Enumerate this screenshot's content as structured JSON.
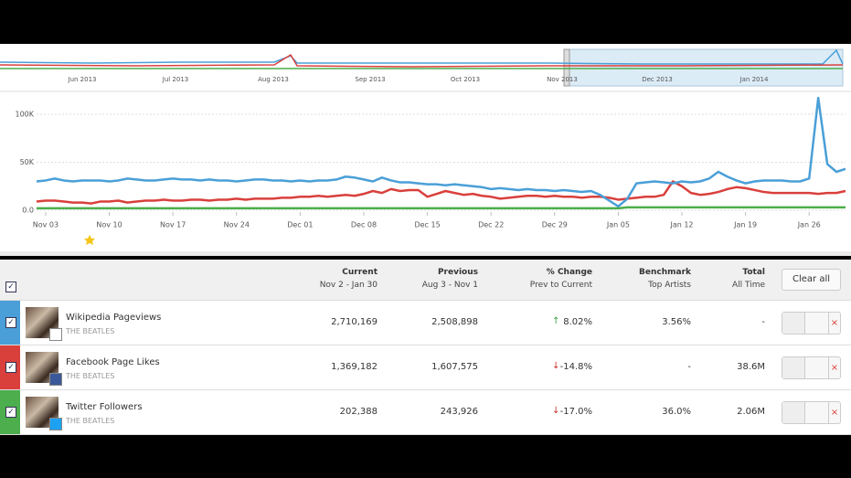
{
  "overview": {
    "labels": [
      "Jun 2013",
      "Jul 2013",
      "Aug 2013",
      "Sep 2013",
      "Oct 2013",
      "Nov 2013",
      "Dec 2013",
      "Jan 2014"
    ]
  },
  "chart_data": {
    "type": "line",
    "x": [
      "Nov 02",
      "Nov 03",
      "Nov 04",
      "Nov 05",
      "Nov 06",
      "Nov 07",
      "Nov 08",
      "Nov 09",
      "Nov 10",
      "Nov 11",
      "Nov 12",
      "Nov 13",
      "Nov 14",
      "Nov 15",
      "Nov 16",
      "Nov 17",
      "Nov 18",
      "Nov 19",
      "Nov 20",
      "Nov 21",
      "Nov 22",
      "Nov 23",
      "Nov 24",
      "Nov 25",
      "Nov 26",
      "Nov 27",
      "Nov 28",
      "Nov 29",
      "Nov 30",
      "Dec 01",
      "Dec 02",
      "Dec 03",
      "Dec 04",
      "Dec 05",
      "Dec 06",
      "Dec 07",
      "Dec 08",
      "Dec 09",
      "Dec 10",
      "Dec 11",
      "Dec 12",
      "Dec 13",
      "Dec 14",
      "Dec 15",
      "Dec 16",
      "Dec 17",
      "Dec 18",
      "Dec 19",
      "Dec 20",
      "Dec 21",
      "Dec 22",
      "Dec 23",
      "Dec 24",
      "Dec 25",
      "Dec 26",
      "Dec 27",
      "Dec 28",
      "Dec 29",
      "Dec 30",
      "Dec 31",
      "Jan 01",
      "Jan 02",
      "Jan 03",
      "Jan 04",
      "Jan 05",
      "Jan 06",
      "Jan 07",
      "Jan 08",
      "Jan 09",
      "Jan 10",
      "Jan 11",
      "Jan 12",
      "Jan 13",
      "Jan 14",
      "Jan 15",
      "Jan 16",
      "Jan 17",
      "Jan 18",
      "Jan 19",
      "Jan 20",
      "Jan 21",
      "Jan 22",
      "Jan 23",
      "Jan 24",
      "Jan 25",
      "Jan 26",
      "Jan 27",
      "Jan 28",
      "Jan 29",
      "Jan 30"
    ],
    "xticks": [
      "Nov 03",
      "Nov 10",
      "Nov 17",
      "Nov 24",
      "Dec 01",
      "Dec 08",
      "Dec 15",
      "Dec 22",
      "Dec 29",
      "Jan 05",
      "Jan 12",
      "Jan 19",
      "Jan 26"
    ],
    "ylim": [
      0,
      120000
    ],
    "yticks": [
      {
        "value": 0,
        "label": "0.0"
      },
      {
        "value": 50000,
        "label": "50K"
      },
      {
        "value": 100000,
        "label": "100K"
      }
    ],
    "grid": true,
    "series": [
      {
        "color": "#4a9fd8",
        "values": [
          30000,
          31000,
          33000,
          31000,
          30000,
          31000,
          31000,
          31000,
          30000,
          31000,
          33000,
          32000,
          31000,
          31000,
          32000,
          33000,
          32000,
          32000,
          31000,
          32000,
          31000,
          31000,
          30000,
          31000,
          32000,
          32000,
          31000,
          31000,
          30000,
          31000,
          30000,
          31000,
          31000,
          32000,
          35000,
          34000,
          32000,
          30000,
          34000,
          31000,
          29000,
          29000,
          28000,
          27000,
          27000,
          26000,
          27000,
          26000,
          25000,
          24000,
          22000,
          23000,
          22000,
          21000,
          22000,
          21000,
          21000,
          20000,
          21000,
          20000,
          19000,
          20000,
          16000,
          10000,
          4000,
          12000,
          28000,
          29000,
          30000,
          29000,
          28000,
          30000,
          29000,
          30000,
          33000,
          40000,
          35000,
          31000,
          28000,
          30000,
          31000,
          31000,
          31000,
          30000,
          30000,
          33000,
          117000,
          48000,
          40000,
          43000
        ]
      },
      {
        "color": "#d9403c",
        "values": [
          9000,
          10000,
          10000,
          9000,
          8000,
          8000,
          7000,
          9000,
          9000,
          10000,
          8000,
          9000,
          10000,
          10000,
          11000,
          10000,
          10000,
          11000,
          11000,
          10000,
          11000,
          11000,
          12000,
          11000,
          12000,
          12000,
          12000,
          13000,
          13000,
          14000,
          14000,
          15000,
          14000,
          15000,
          16000,
          15000,
          17000,
          20000,
          18000,
          22000,
          20000,
          21000,
          21000,
          14000,
          17000,
          20000,
          18000,
          16000,
          17000,
          15000,
          14000,
          12000,
          13000,
          14000,
          15000,
          15000,
          14000,
          15000,
          14000,
          14000,
          13000,
          14000,
          14000,
          13000,
          11000,
          12000,
          13000,
          14000,
          14000,
          16000,
          30000,
          25000,
          18000,
          16000,
          17000,
          19000,
          22000,
          24000,
          23000,
          21000,
          19000,
          18000,
          18000,
          18000,
          18000,
          18000,
          17000,
          18000,
          18000,
          20000
        ]
      },
      {
        "color": "#4cae4c",
        "values": [
          2000,
          2000,
          2000,
          2000,
          2000,
          2000,
          2000,
          2000,
          2000,
          2000,
          2000,
          2000,
          2000,
          2000,
          2000,
          2000,
          2000,
          2000,
          2000,
          2000,
          2000,
          2000,
          2000,
          2000,
          2000,
          2000,
          2000,
          2000,
          2000,
          2000,
          2000,
          2000,
          2000,
          2000,
          2000,
          2000,
          2000,
          2000,
          2000,
          2000,
          2000,
          2000,
          2000,
          2000,
          2000,
          2000,
          2000,
          2000,
          2000,
          2000,
          2000,
          2000,
          2000,
          2000,
          2000,
          2000,
          2000,
          2000,
          2000,
          2000,
          2000,
          2000,
          2000,
          2000,
          2000,
          3000,
          3000,
          3000,
          3000,
          3000,
          3000,
          3000,
          3000,
          3000,
          3000,
          3000,
          3000,
          3000,
          3000,
          3000,
          3000,
          3000,
          3000,
          3000,
          3000,
          3000,
          3000,
          3000,
          3000,
          3000
        ]
      }
    ]
  },
  "table": {
    "columns": [
      {
        "title": "Current",
        "subtitle": "Nov 2 - Jan 30"
      },
      {
        "title": "Previous",
        "subtitle": "Aug 3 - Nov 1"
      },
      {
        "title": "% Change",
        "subtitle": "Prev to Current"
      },
      {
        "title": "Benchmark",
        "subtitle": "Top Artists"
      },
      {
        "title": "Total",
        "subtitle": "All Time"
      }
    ],
    "button": "Clear all",
    "rows": [
      {
        "name": "Wikipedia Pageviews",
        "artist": "THE BEATLES",
        "cells": [
          "2,710,169",
          "2,508,898",
          "8.02%",
          "3.56%",
          "-"
        ]
      },
      {
        "name": "Facebook Page Likes",
        "artist": "THE BEATLES",
        "cells": [
          "1,369,182",
          "1,607,575",
          "-14.8%",
          "-",
          "38.6M"
        ]
      },
      {
        "name": "Twitter Followers",
        "artist": "THE BEATLES",
        "cells": [
          "202,388",
          "243,926",
          "-17.0%",
          "36.0%",
          "2.06M"
        ]
      }
    ]
  }
}
